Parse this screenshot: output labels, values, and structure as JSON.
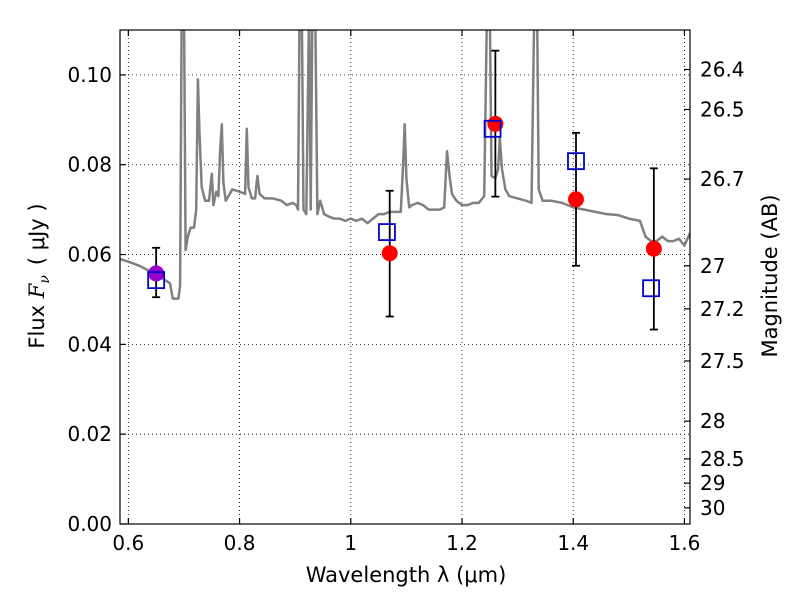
{
  "chart_data": {
    "type": "scatter",
    "xlabel": "Wavelength  λ (μm)",
    "ylabel_prefix": "Flux  ",
    "ylabel_symbol": "F",
    "ylabel_subscript": "ν",
    "ylabel_unit": "( μJy )",
    "y2label": "Magnitude (AB)",
    "xlim": [
      0.585,
      1.61
    ],
    "ylim": [
      0.0,
      0.11
    ],
    "grid": true,
    "x_ticks": [
      {
        "value": 0.6,
        "label": "0.6"
      },
      {
        "value": 0.8,
        "label": "0.8"
      },
      {
        "value": 1.0,
        "label": "1"
      },
      {
        "value": 1.2,
        "label": "1.2"
      },
      {
        "value": 1.4,
        "label": "1.4"
      },
      {
        "value": 1.6,
        "label": "1.6"
      }
    ],
    "y_ticks": [
      {
        "value": 0.0,
        "label": "0.00"
      },
      {
        "value": 0.02,
        "label": "0.02"
      },
      {
        "value": 0.04,
        "label": "0.04"
      },
      {
        "value": 0.06,
        "label": "0.06"
      },
      {
        "value": 0.08,
        "label": "0.08"
      },
      {
        "value": 0.1,
        "label": "0.10"
      }
    ],
    "mag_ticks": [
      {
        "flux": 0.1012,
        "label": "26.4"
      },
      {
        "flux": 0.0923,
        "label": "26.5"
      },
      {
        "flux": 0.0768,
        "label": "26.7"
      },
      {
        "flux": 0.0575,
        "label": "27"
      },
      {
        "flux": 0.0479,
        "label": "27.2"
      },
      {
        "flux": 0.0363,
        "label": "27.5"
      },
      {
        "flux": 0.0229,
        "label": "28"
      },
      {
        "flux": 0.0145,
        "label": "28.5"
      },
      {
        "flux": 0.0091,
        "label": "29"
      },
      {
        "flux": 0.0036,
        "label": "30"
      }
    ],
    "observed": [
      {
        "x": 0.65,
        "y": 0.0558,
        "lo": 0.0505,
        "hi": 0.0615,
        "color": "#9900cc"
      },
      {
        "x": 1.07,
        "y": 0.0603,
        "lo": 0.0462,
        "hi": 0.0742,
        "color": "#ff0000"
      },
      {
        "x": 1.26,
        "y": 0.0891,
        "lo": 0.0729,
        "hi": 0.1054,
        "color": "#ff0000"
      },
      {
        "x": 1.405,
        "y": 0.0723,
        "lo": 0.0575,
        "hi": 0.0871,
        "color": "#ff0000"
      },
      {
        "x": 1.545,
        "y": 0.0613,
        "lo": 0.0433,
        "hi": 0.0792,
        "color": "#ff0000"
      }
    ],
    "model": [
      {
        "x": 0.65,
        "y": 0.0543
      },
      {
        "x": 1.065,
        "y": 0.065
      },
      {
        "x": 1.255,
        "y": 0.088
      },
      {
        "x": 1.405,
        "y": 0.0808
      },
      {
        "x": 1.54,
        "y": 0.0525
      }
    ],
    "spectrum": [
      [
        0.585,
        0.059
      ],
      [
        0.6,
        0.0584
      ],
      [
        0.62,
        0.0575
      ],
      [
        0.64,
        0.0562
      ],
      [
        0.66,
        0.0548
      ],
      [
        0.675,
        0.0536
      ],
      [
        0.68,
        0.0502
      ],
      [
        0.69,
        0.0502
      ],
      [
        0.693,
        0.053
      ],
      [
        0.696,
        0.115
      ],
      [
        0.7,
        0.115
      ],
      [
        0.703,
        0.061
      ],
      [
        0.707,
        0.064
      ],
      [
        0.712,
        0.066
      ],
      [
        0.718,
        0.066
      ],
      [
        0.722,
        0.07
      ],
      [
        0.725,
        0.099
      ],
      [
        0.728,
        0.087
      ],
      [
        0.732,
        0.075
      ],
      [
        0.738,
        0.072
      ],
      [
        0.745,
        0.072
      ],
      [
        0.75,
        0.078
      ],
      [
        0.753,
        0.071
      ],
      [
        0.758,
        0.074
      ],
      [
        0.762,
        0.073
      ],
      [
        0.765,
        0.083
      ],
      [
        0.768,
        0.089
      ],
      [
        0.771,
        0.076
      ],
      [
        0.775,
        0.072
      ],
      [
        0.78,
        0.073
      ],
      [
        0.787,
        0.0745
      ],
      [
        0.8,
        0.074
      ],
      [
        0.81,
        0.0735
      ],
      [
        0.813,
        0.088
      ],
      [
        0.816,
        0.075
      ],
      [
        0.822,
        0.0725
      ],
      [
        0.828,
        0.0725
      ],
      [
        0.832,
        0.0775
      ],
      [
        0.836,
        0.0735
      ],
      [
        0.845,
        0.0725
      ],
      [
        0.86,
        0.0725
      ],
      [
        0.875,
        0.072
      ],
      [
        0.885,
        0.071
      ],
      [
        0.895,
        0.0715
      ],
      [
        0.902,
        0.071
      ],
      [
        0.905,
        0.07
      ],
      [
        0.908,
        0.115
      ],
      [
        0.912,
        0.115
      ],
      [
        0.915,
        0.07
      ],
      [
        0.92,
        0.069
      ],
      [
        0.925,
        0.115
      ],
      [
        0.928,
        0.07
      ],
      [
        0.931,
        0.115
      ],
      [
        0.936,
        0.115
      ],
      [
        0.94,
        0.069
      ],
      [
        0.945,
        0.072
      ],
      [
        0.952,
        0.069
      ],
      [
        0.96,
        0.0685
      ],
      [
        0.97,
        0.068
      ],
      [
        0.98,
        0.068
      ],
      [
        0.99,
        0.0675
      ],
      [
        1.0,
        0.068
      ],
      [
        1.01,
        0.0675
      ],
      [
        1.02,
        0.068
      ],
      [
        1.03,
        0.067
      ],
      [
        1.04,
        0.068
      ],
      [
        1.05,
        0.069
      ],
      [
        1.06,
        0.069
      ],
      [
        1.07,
        0.0695
      ],
      [
        1.08,
        0.0695
      ],
      [
        1.09,
        0.0695
      ],
      [
        1.094,
        0.08
      ],
      [
        1.097,
        0.089
      ],
      [
        1.1,
        0.077
      ],
      [
        1.105,
        0.0705
      ],
      [
        1.11,
        0.071
      ],
      [
        1.12,
        0.0715
      ],
      [
        1.13,
        0.071
      ],
      [
        1.14,
        0.07
      ],
      [
        1.15,
        0.07
      ],
      [
        1.16,
        0.07
      ],
      [
        1.168,
        0.0705
      ],
      [
        1.173,
        0.083
      ],
      [
        1.178,
        0.077
      ],
      [
        1.182,
        0.0735
      ],
      [
        1.19,
        0.072
      ],
      [
        1.2,
        0.071
      ],
      [
        1.21,
        0.071
      ],
      [
        1.22,
        0.0715
      ],
      [
        1.23,
        0.0715
      ],
      [
        1.24,
        0.073
      ],
      [
        1.245,
        0.115
      ],
      [
        1.25,
        0.115
      ],
      [
        1.253,
        0.0775
      ],
      [
        1.26,
        0.077
      ],
      [
        1.265,
        0.079
      ],
      [
        1.268,
        0.086
      ],
      [
        1.272,
        0.079
      ],
      [
        1.278,
        0.0745
      ],
      [
        1.285,
        0.073
      ],
      [
        1.3,
        0.0725
      ],
      [
        1.315,
        0.072
      ],
      [
        1.325,
        0.0715
      ],
      [
        1.33,
        0.115
      ],
      [
        1.335,
        0.115
      ],
      [
        1.338,
        0.0745
      ],
      [
        1.345,
        0.072
      ],
      [
        1.36,
        0.072
      ],
      [
        1.38,
        0.0715
      ],
      [
        1.4,
        0.0705
      ],
      [
        1.42,
        0.07
      ],
      [
        1.44,
        0.0695
      ],
      [
        1.46,
        0.069
      ],
      [
        1.48,
        0.0688
      ],
      [
        1.5,
        0.068
      ],
      [
        1.52,
        0.0675
      ],
      [
        1.53,
        0.064
      ],
      [
        1.54,
        0.063
      ],
      [
        1.55,
        0.063
      ],
      [
        1.56,
        0.064
      ],
      [
        1.57,
        0.063
      ],
      [
        1.58,
        0.063
      ],
      [
        1.59,
        0.0635
      ],
      [
        1.6,
        0.062
      ],
      [
        1.61,
        0.0648
      ]
    ],
    "colors": {
      "spectrum": "#808080",
      "model_marker": "#0000cc",
      "observed_marker": "#ff0000",
      "first_observed_marker": "#9900cc",
      "errorbar": "#000000",
      "grid": "#000000"
    }
  }
}
